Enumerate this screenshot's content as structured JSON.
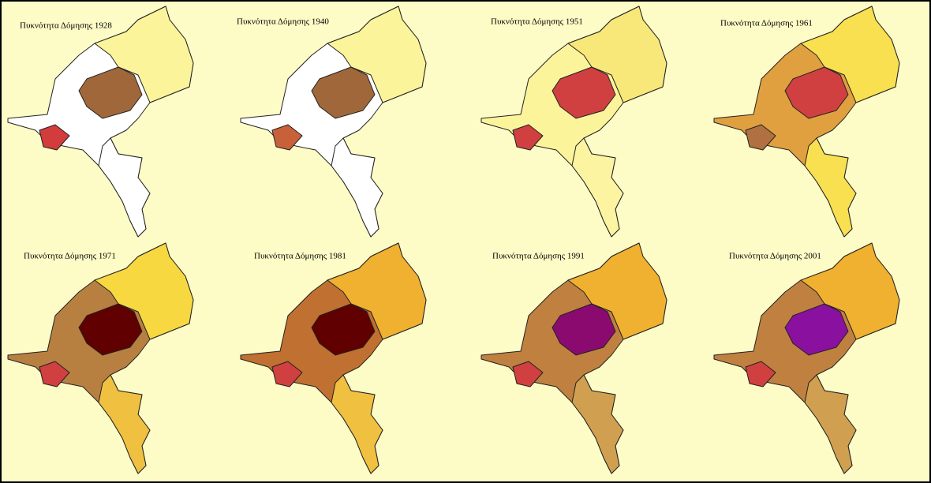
{
  "maps": [
    {
      "title": "Πυκνότητα Δόμησης 1928"
    },
    {
      "title": "Πυκνότητα Δόμησης 1940"
    },
    {
      "title": "Πυκνότητα Δόμησης 1951"
    },
    {
      "title": "Πυκνότητα Δόμησης 1961"
    },
    {
      "title": "Πυκνότητα Δόμησης 1971"
    },
    {
      "title": "Πυκνότητα Δόμησης 1981"
    },
    {
      "title": "Πυκνότητα Δόμησης 1991"
    },
    {
      "title": "Πυκνότητα Δόμησης 2001"
    }
  ]
}
